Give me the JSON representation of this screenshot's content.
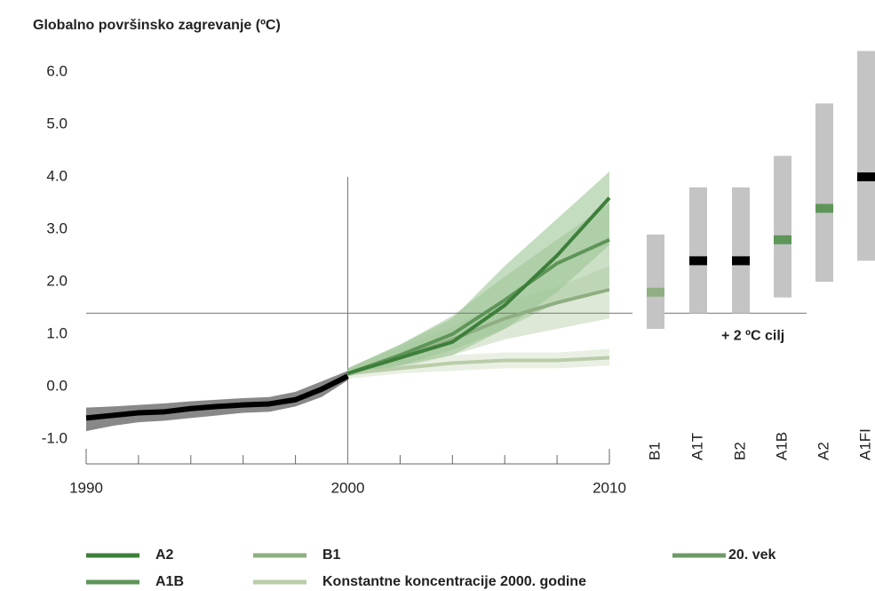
{
  "chart_data": {
    "type": "line",
    "title": "Globalno površinsko zagrevanje (ºC)",
    "xlim": [
      1990,
      2010
    ],
    "xticks": [
      1990,
      2000,
      2010
    ],
    "xminorticks": [
      1992,
      1994,
      1996,
      1998,
      2002,
      2004,
      2006,
      2008
    ],
    "ylim": [
      -1.5,
      6.5
    ],
    "yticks": [
      {
        "value": -1,
        "label": "-1.0"
      },
      {
        "value": 0,
        "label": "0.0"
      },
      {
        "value": 1,
        "label": "1.0"
      },
      {
        "value": 2,
        "label": "2.0"
      },
      {
        "value": 3,
        "label": "3.0"
      },
      {
        "value": 4,
        "label": "4.0"
      },
      {
        "value": 5,
        "label": "5.0"
      },
      {
        "value": 6,
        "label": "6.0"
      }
    ],
    "vline": {
      "x": 2000,
      "ymax": 4.0
    },
    "target_line": {
      "value": 1.4,
      "label": "+ 2 ºC cilj"
    },
    "series": [
      {
        "name": "A2",
        "color": "#3d7f3a",
        "band_color": "#9cc594",
        "x": [
          2000,
          2002,
          2004,
          2006,
          2008,
          2010
        ],
        "values": [
          0.25,
          0.55,
          0.85,
          1.55,
          2.5,
          3.6
        ],
        "band_lower": [
          0.2,
          0.4,
          0.6,
          1.1,
          1.8,
          2.7
        ],
        "band_upper": [
          0.35,
          0.8,
          1.3,
          2.3,
          3.2,
          4.1
        ]
      },
      {
        "name": "A1B",
        "color": "#5e9558",
        "band_color": "#a9c9a0",
        "x": [
          2000,
          2002,
          2004,
          2006,
          2008,
          2010
        ],
        "values": [
          0.25,
          0.6,
          1.0,
          1.65,
          2.35,
          2.8
        ],
        "band_lower": [
          0.2,
          0.4,
          0.7,
          1.1,
          1.6,
          1.9
        ],
        "band_upper": [
          0.35,
          0.8,
          1.35,
          2.1,
          2.8,
          3.5
        ]
      },
      {
        "name": "B1",
        "color": "#8fae82",
        "band_color": "#c8d9bd",
        "x": [
          2000,
          2002,
          2004,
          2006,
          2008,
          2010
        ],
        "values": [
          0.25,
          0.55,
          0.9,
          1.3,
          1.6,
          1.85
        ],
        "band_lower": [
          0.2,
          0.35,
          0.6,
          0.9,
          1.1,
          1.3
        ],
        "band_upper": [
          0.35,
          0.75,
          1.15,
          1.6,
          1.9,
          2.3
        ]
      },
      {
        "name": "Konstantne koncentracije 2000. godine",
        "color": "#b9cda9",
        "band_color": "#dbe6d1",
        "x": [
          2000,
          2002,
          2004,
          2006,
          2008,
          2010
        ],
        "values": [
          0.25,
          0.35,
          0.45,
          0.5,
          0.5,
          0.55
        ],
        "band_lower": [
          0.15,
          0.25,
          0.3,
          0.35,
          0.35,
          0.4
        ],
        "band_upper": [
          0.3,
          0.5,
          0.6,
          0.65,
          0.65,
          0.72
        ]
      },
      {
        "name": "20. vek",
        "color": "#000000",
        "legend_color": "#6f9a68",
        "band_color": "#888888",
        "x": [
          1990,
          1991,
          1992,
          1993,
          1994,
          1995,
          1996,
          1997,
          1998,
          1999,
          2000
        ],
        "values": [
          -0.6,
          -0.55,
          -0.5,
          -0.48,
          -0.42,
          -0.38,
          -0.35,
          -0.33,
          -0.25,
          -0.05,
          0.2
        ],
        "band_lower": [
          -0.85,
          -0.75,
          -0.68,
          -0.65,
          -0.6,
          -0.55,
          -0.5,
          -0.48,
          -0.38,
          -0.2,
          0.12
        ],
        "band_upper": [
          -0.4,
          -0.38,
          -0.35,
          -0.32,
          -0.28,
          -0.25,
          -0.22,
          -0.2,
          -0.1,
          0.1,
          0.3
        ]
      }
    ],
    "range_bars": {
      "categories": [
        "B1",
        "A1T",
        "B2",
        "A1B",
        "A2",
        "A1FI"
      ],
      "low": [
        1.1,
        1.4,
        1.4,
        1.7,
        2.0,
        2.4
      ],
      "high": [
        2.9,
        3.8,
        3.8,
        4.4,
        5.4,
        6.4
      ],
      "best": [
        1.8,
        2.4,
        2.4,
        2.8,
        3.4,
        4.0
      ],
      "best_colors": [
        "#8fae82",
        "#000000",
        "#000000",
        "#5e9558",
        "#5e9558",
        "#000000"
      ],
      "color": "#c4c4c4"
    }
  }
}
